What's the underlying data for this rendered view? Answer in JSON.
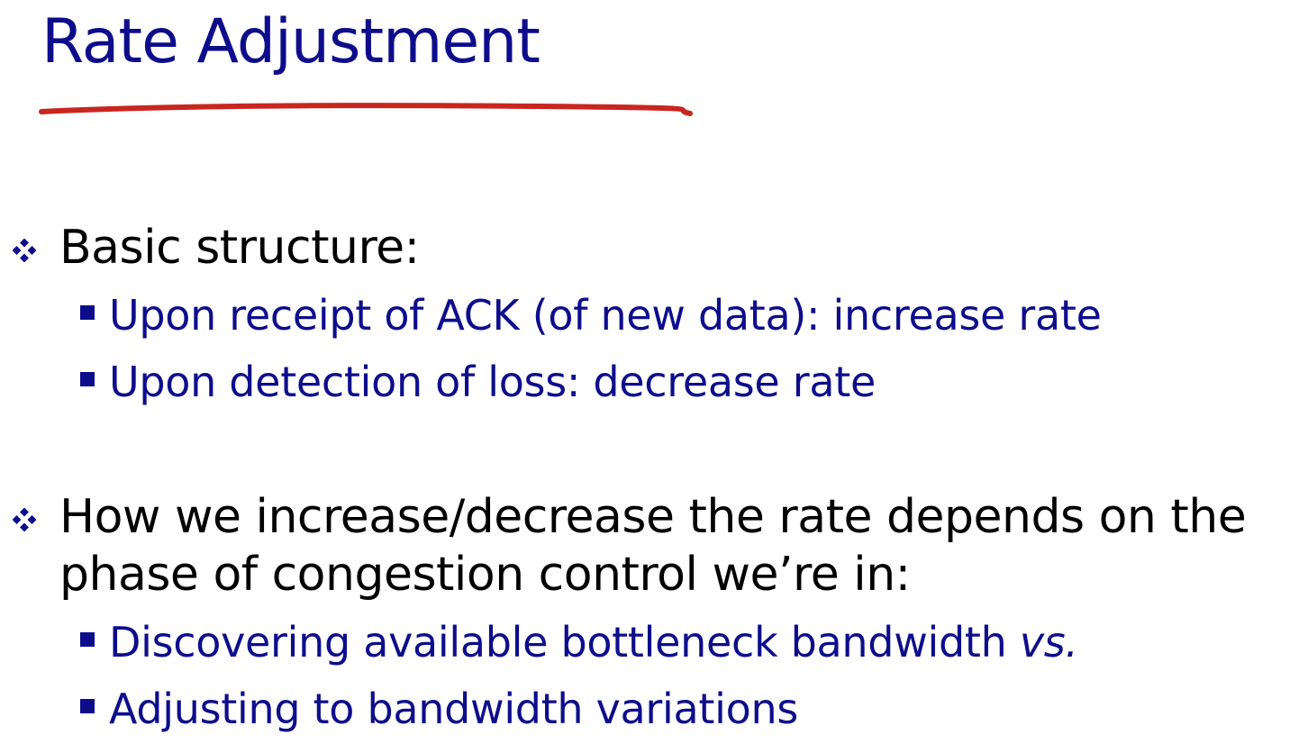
{
  "slide": {
    "title": "Rate Adjustment",
    "colors": {
      "title": "#0d0d8c",
      "underline": "#c8261f",
      "body_text": "#000000",
      "sub_text": "#0d0d8c"
    },
    "bullets": [
      {
        "text": "Basic structure:",
        "icon": "diamond-icon",
        "sub": [
          {
            "text": "Upon receipt of ACK (of new data): increase rate"
          },
          {
            "text": "Upon detection of loss: decrease rate"
          }
        ]
      },
      {
        "text": "How we increase/decrease the rate depends on the phase of congestion control we’re in:",
        "icon": "diamond-icon",
        "sub": [
          {
            "text": "Discovering available bottleneck bandwidth ",
            "emphasis": "vs."
          },
          {
            "text": "Adjusting to bandwidth variations"
          }
        ]
      }
    ]
  }
}
